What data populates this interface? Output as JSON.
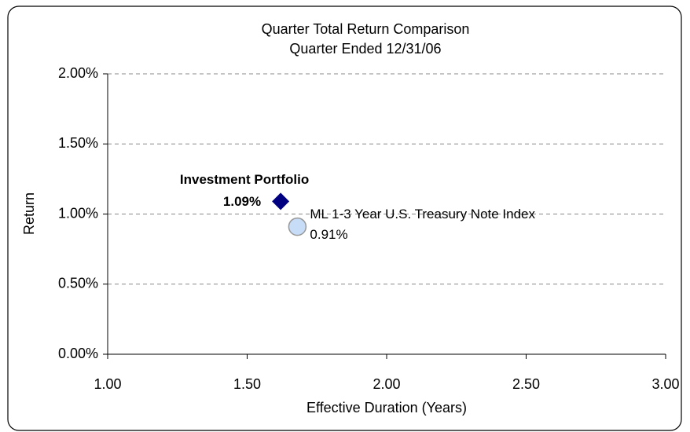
{
  "chart_data": {
    "type": "scatter",
    "title": "Quarter Total Return Comparison",
    "subtitle": "Quarter Ended 12/31/06",
    "x_label": "Effective Duration (Years)",
    "y_label": "Return",
    "xlim": [
      1,
      3
    ],
    "xticks": [
      {
        "value": 1,
        "label": "1.00"
      },
      {
        "value": 1.5,
        "label": "1.50"
      },
      {
        "value": 2,
        "label": "2.00"
      },
      {
        "value": 2.5,
        "label": "2.50"
      },
      {
        "value": 3,
        "label": "3.00"
      }
    ],
    "ylim": [
      0,
      2
    ],
    "yticks": [
      {
        "value": 0,
        "label": "0.00%"
      },
      {
        "value": 0.5,
        "label": "0.50%"
      },
      {
        "value": 1,
        "label": "1.00%"
      },
      {
        "value": 1.5,
        "label": "1.50%"
      },
      {
        "value": 2,
        "label": "2.00%"
      }
    ],
    "grid": true,
    "series": [
      {
        "name": "Investment Portfolio",
        "color": "#000080",
        "marker": "diamond",
        "x": [
          1.62
        ],
        "values": [
          1.09
        ],
        "value_labels": [
          "1.09%"
        ]
      },
      {
        "name": "ML 1-3 Year U.S. Treasury Note Index",
        "color": "#c6dcf7",
        "marker": "circle",
        "x": [
          1.68
        ],
        "values": [
          0.91
        ],
        "value_labels": [
          "0.91%"
        ]
      }
    ]
  }
}
